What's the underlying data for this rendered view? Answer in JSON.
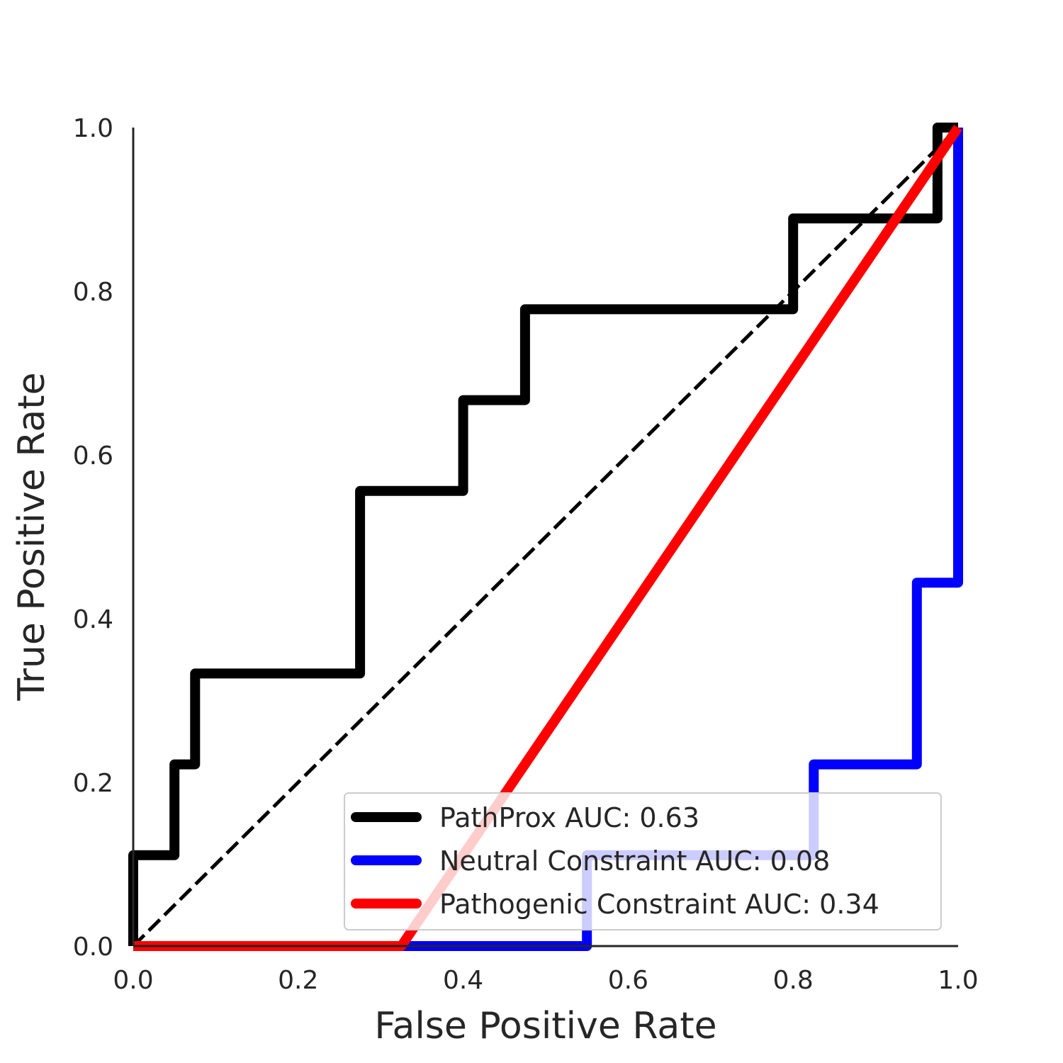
{
  "chart_data": {
    "type": "line",
    "title": "",
    "xlabel": "False Positive Rate",
    "ylabel": "True Positive Rate",
    "xlim": [
      0.0,
      1.0
    ],
    "ylim": [
      0.0,
      1.0
    ],
    "x_ticks": [
      "0.0",
      "0.2",
      "0.4",
      "0.6",
      "0.8",
      "1.0"
    ],
    "y_ticks": [
      "0.0",
      "0.2",
      "0.4",
      "0.6",
      "0.8",
      "1.0"
    ],
    "grid": false,
    "legend_position": "lower right",
    "reference_line": {
      "style": "dashed",
      "color": "#000000",
      "x": [
        0,
        1
      ],
      "y": [
        0,
        1
      ]
    },
    "series": [
      {
        "name": "PathProx AUC:  0.63",
        "color": "#000000",
        "x": [
          0,
          0,
          0.05,
          0.05,
          0.075,
          0.075,
          0.275,
          0.275,
          0.4,
          0.4,
          0.475,
          0.475,
          0.8,
          0.8,
          0.975,
          0.975,
          1.0
        ],
        "y": [
          0,
          0.111,
          0.111,
          0.222,
          0.222,
          0.333,
          0.333,
          0.556,
          0.556,
          0.667,
          0.667,
          0.778,
          0.778,
          0.889,
          0.889,
          1.0,
          1.0
        ]
      },
      {
        "name": "Neutral Constraint AUC:  0.08",
        "color": "#0000ff",
        "x": [
          0,
          0.55,
          0.55,
          0.825,
          0.825,
          0.95,
          0.95,
          1.0,
          1.0
        ],
        "y": [
          0,
          0,
          0.111,
          0.111,
          0.222,
          0.222,
          0.444,
          0.444,
          1.0
        ]
      },
      {
        "name": "Pathogenic Constraint AUC:  0.34",
        "color": "#ff0000",
        "x": [
          0,
          0.325,
          1.0
        ],
        "y": [
          0,
          0,
          1.0
        ]
      }
    ]
  }
}
